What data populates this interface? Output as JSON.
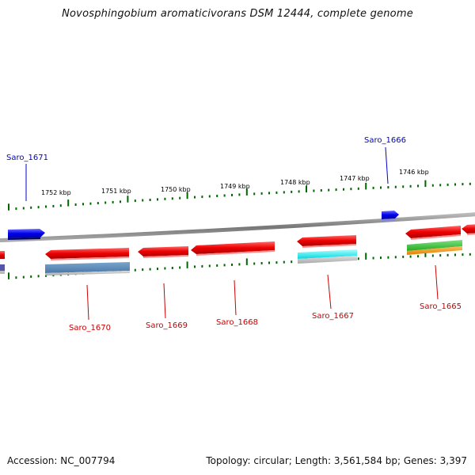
{
  "title": "Novosphingobium aromaticivorans DSM 12444, complete genome",
  "footer": {
    "accession": "Accession: NC_007794",
    "stats": "Topology: circular; Length: 3,561,584 bp; Genes: 3,397"
  },
  "colors": {
    "forward_gene": "#0000ee",
    "reverse_gene": "#ee0000",
    "track_tick": "#006600",
    "backbone": "#888888",
    "label_forward": "#0000cc",
    "label_reverse": "#cc0000"
  },
  "scale": {
    "unit": "kbp",
    "labels": [
      "1752 kbp",
      "1751 kbp",
      "1750 kbp",
      "1749 kbp",
      "1748 kbp",
      "1747 kbp",
      "1746 kbp"
    ]
  },
  "genes": [
    {
      "name": "Saro_1671",
      "strand": "forward"
    },
    {
      "name": "Saro_1666",
      "strand": "forward"
    },
    {
      "name": "Saro_1670",
      "strand": "reverse"
    },
    {
      "name": "Saro_1669",
      "strand": "reverse"
    },
    {
      "name": "Saro_1668",
      "strand": "reverse"
    },
    {
      "name": "Saro_1667",
      "strand": "reverse"
    },
    {
      "name": "Saro_1665",
      "strand": "reverse"
    }
  ]
}
